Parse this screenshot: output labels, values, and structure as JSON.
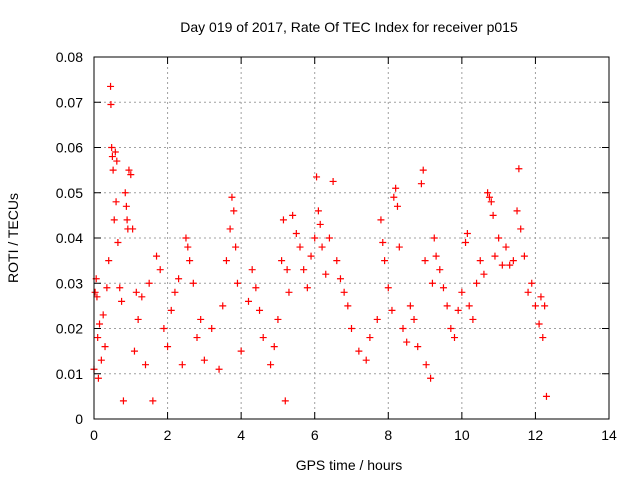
{
  "chart_data": {
    "type": "scatter",
    "title": "Day 019 of 2017, Rate Of TEC Index for receiver p015",
    "xlabel": "GPS time / hours",
    "ylabel": "ROTI / TECUs",
    "xlim": [
      0,
      14
    ],
    "ylim": [
      0,
      0.08
    ],
    "x_ticks": [
      0,
      2,
      4,
      6,
      8,
      10,
      12,
      14
    ],
    "y_ticks": [
      0,
      0.01,
      0.02,
      0.03,
      0.04,
      0.05,
      0.06,
      0.07,
      0.08
    ],
    "x_tick_labels": [
      "0",
      "2",
      "4",
      "6",
      "8",
      "10",
      "12",
      "14"
    ],
    "y_tick_labels": [
      "0",
      "0.01",
      "0.02",
      "0.03",
      "0.04",
      "0.05",
      "0.06",
      "0.07",
      "0.08"
    ],
    "grid": true,
    "marker": "+",
    "color": "#ff0000",
    "data_gap_hours": [
      9.05,
      9.12
    ],
    "series": [
      {
        "points": [
          [
            0.0,
            0.011
          ],
          [
            0.03,
            0.028
          ],
          [
            0.06,
            0.031
          ],
          [
            0.08,
            0.027
          ],
          [
            0.1,
            0.018
          ],
          [
            0.12,
            0.009
          ],
          [
            0.15,
            0.021
          ],
          [
            0.2,
            0.013
          ],
          [
            0.25,
            0.023
          ],
          [
            0.3,
            0.016
          ],
          [
            0.35,
            0.029
          ],
          [
            0.4,
            0.035
          ],
          [
            0.45,
            0.0735
          ],
          [
            0.46,
            0.0695
          ],
          [
            0.48,
            0.06
          ],
          [
            0.5,
            0.058
          ],
          [
            0.52,
            0.055
          ],
          [
            0.55,
            0.044
          ],
          [
            0.58,
            0.059
          ],
          [
            0.6,
            0.048
          ],
          [
            0.62,
            0.057
          ],
          [
            0.65,
            0.039
          ],
          [
            0.7,
            0.029
          ],
          [
            0.75,
            0.026
          ],
          [
            0.8,
            0.004
          ],
          [
            0.85,
            0.05
          ],
          [
            0.88,
            0.047
          ],
          [
            0.9,
            0.044
          ],
          [
            0.92,
            0.042
          ],
          [
            0.95,
            0.055
          ],
          [
            1.0,
            0.054
          ],
          [
            1.05,
            0.042
          ],
          [
            1.1,
            0.015
          ],
          [
            1.15,
            0.028
          ],
          [
            1.2,
            0.022
          ],
          [
            1.3,
            0.027
          ],
          [
            1.4,
            0.012
          ],
          [
            1.5,
            0.03
          ],
          [
            1.6,
            0.004
          ],
          [
            1.7,
            0.036
          ],
          [
            1.8,
            0.033
          ],
          [
            1.9,
            0.02
          ],
          [
            2.0,
            0.016
          ],
          [
            2.1,
            0.024
          ],
          [
            2.2,
            0.028
          ],
          [
            2.3,
            0.031
          ],
          [
            2.4,
            0.012
          ],
          [
            2.5,
            0.04
          ],
          [
            2.55,
            0.038
          ],
          [
            2.6,
            0.035
          ],
          [
            2.7,
            0.03
          ],
          [
            2.8,
            0.018
          ],
          [
            2.9,
            0.022
          ],
          [
            3.0,
            0.013
          ],
          [
            3.2,
            0.02
          ],
          [
            3.4,
            0.011
          ],
          [
            3.5,
            0.025
          ],
          [
            3.6,
            0.035
          ],
          [
            3.7,
            0.042
          ],
          [
            3.75,
            0.049
          ],
          [
            3.8,
            0.046
          ],
          [
            3.85,
            0.038
          ],
          [
            3.9,
            0.03
          ],
          [
            4.0,
            0.015
          ],
          [
            4.2,
            0.026
          ],
          [
            4.3,
            0.033
          ],
          [
            4.4,
            0.029
          ],
          [
            4.5,
            0.024
          ],
          [
            4.6,
            0.018
          ],
          [
            4.8,
            0.012
          ],
          [
            4.9,
            0.016
          ],
          [
            5.0,
            0.022
          ],
          [
            5.1,
            0.035
          ],
          [
            5.15,
            0.044
          ],
          [
            5.2,
            0.004
          ],
          [
            5.25,
            0.033
          ],
          [
            5.3,
            0.028
          ],
          [
            5.4,
            0.045
          ],
          [
            5.5,
            0.041
          ],
          [
            5.6,
            0.038
          ],
          [
            5.7,
            0.033
          ],
          [
            5.8,
            0.029
          ],
          [
            5.9,
            0.036
          ],
          [
            6.0,
            0.04
          ],
          [
            6.05,
            0.0535
          ],
          [
            6.1,
            0.046
          ],
          [
            6.15,
            0.043
          ],
          [
            6.2,
            0.038
          ],
          [
            6.3,
            0.032
          ],
          [
            6.4,
            0.04
          ],
          [
            6.5,
            0.0525
          ],
          [
            6.6,
            0.035
          ],
          [
            6.7,
            0.031
          ],
          [
            6.8,
            0.028
          ],
          [
            6.9,
            0.025
          ],
          [
            7.0,
            0.02
          ],
          [
            7.2,
            0.015
          ],
          [
            7.4,
            0.013
          ],
          [
            7.5,
            0.018
          ],
          [
            7.7,
            0.022
          ],
          [
            7.8,
            0.044
          ],
          [
            7.85,
            0.039
          ],
          [
            7.9,
            0.035
          ],
          [
            8.0,
            0.029
          ],
          [
            8.1,
            0.024
          ],
          [
            8.15,
            0.049
          ],
          [
            8.2,
            0.051
          ],
          [
            8.25,
            0.047
          ],
          [
            8.3,
            0.038
          ],
          [
            8.4,
            0.02
          ],
          [
            8.5,
            0.017
          ],
          [
            8.6,
            0.025
          ],
          [
            8.7,
            0.022
          ],
          [
            8.8,
            0.016
          ],
          [
            8.9,
            0.052
          ],
          [
            8.95,
            0.055
          ],
          [
            9.0,
            0.035
          ],
          [
            9.03,
            0.012
          ],
          [
            9.15,
            0.009
          ],
          [
            9.2,
            0.03
          ],
          [
            9.25,
            0.04
          ],
          [
            9.3,
            0.036
          ],
          [
            9.4,
            0.033
          ],
          [
            9.5,
            0.029
          ],
          [
            9.6,
            0.025
          ],
          [
            9.7,
            0.02
          ],
          [
            9.8,
            0.018
          ],
          [
            9.9,
            0.024
          ],
          [
            10.0,
            0.028
          ],
          [
            10.1,
            0.039
          ],
          [
            10.15,
            0.041
          ],
          [
            10.2,
            0.025
          ],
          [
            10.3,
            0.022
          ],
          [
            10.4,
            0.03
          ],
          [
            10.5,
            0.035
          ],
          [
            10.6,
            0.032
          ],
          [
            10.7,
            0.05
          ],
          [
            10.75,
            0.049
          ],
          [
            10.8,
            0.048
          ],
          [
            10.85,
            0.045
          ],
          [
            10.9,
            0.036
          ],
          [
            11.0,
            0.04
          ],
          [
            11.1,
            0.034
          ],
          [
            11.2,
            0.038
          ],
          [
            11.3,
            0.034
          ],
          [
            11.4,
            0.035
          ],
          [
            11.5,
            0.046
          ],
          [
            11.55,
            0.0553
          ],
          [
            11.6,
            0.042
          ],
          [
            11.7,
            0.036
          ],
          [
            11.8,
            0.028
          ],
          [
            11.9,
            0.03
          ],
          [
            12.0,
            0.025
          ],
          [
            12.1,
            0.021
          ],
          [
            12.15,
            0.027
          ],
          [
            12.2,
            0.018
          ],
          [
            12.25,
            0.025
          ],
          [
            12.3,
            0.005
          ]
        ]
      }
    ]
  }
}
